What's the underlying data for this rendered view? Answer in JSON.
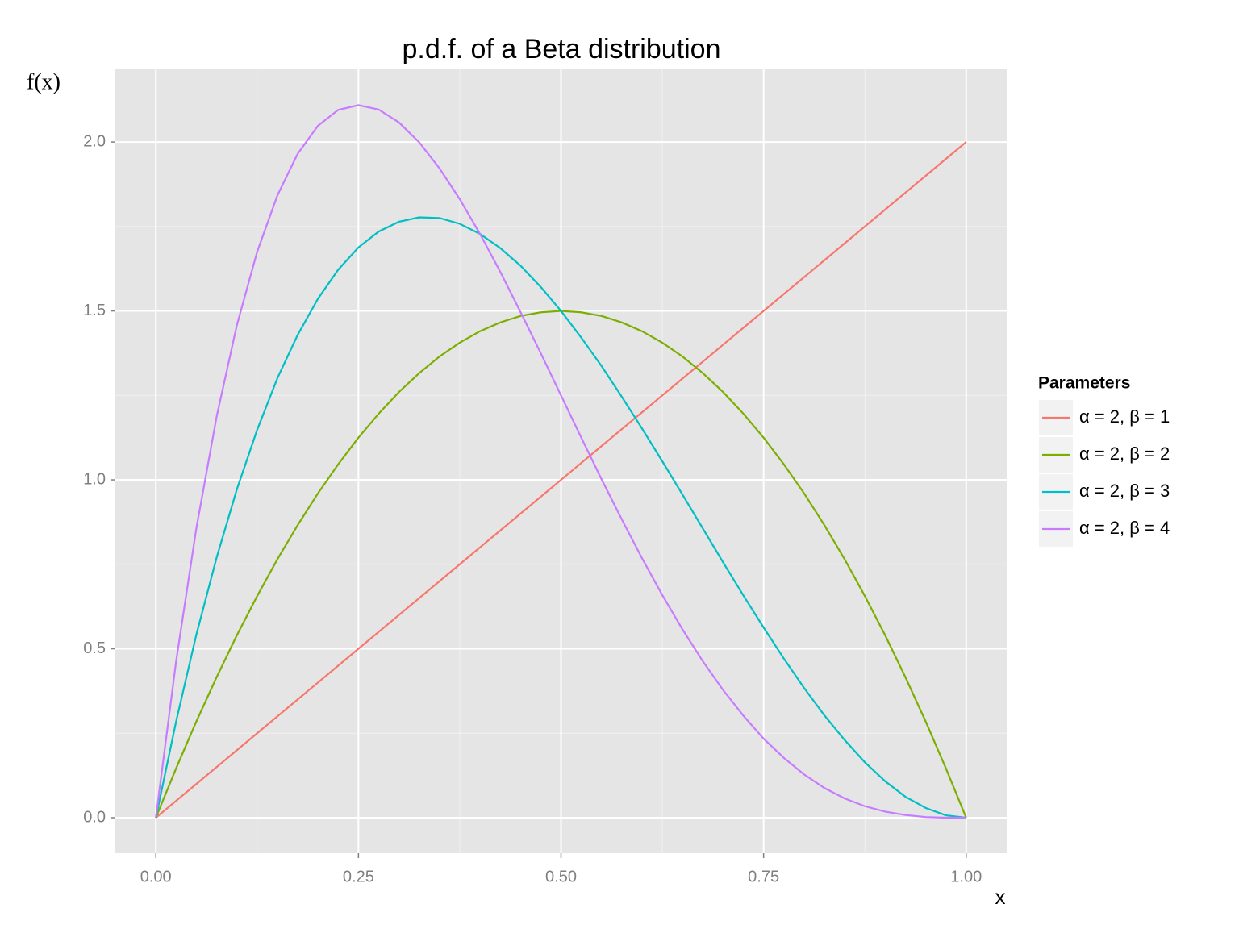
{
  "chart_data": {
    "type": "line",
    "title": "p.d.f. of a Beta distribution",
    "x_label": "x",
    "y_label": "f(x)",
    "legend_title": "Parameters",
    "legend_position": "right",
    "grid": true,
    "x": [
      0,
      0.025,
      0.05,
      0.075,
      0.1,
      0.125,
      0.15,
      0.175,
      0.2,
      0.225,
      0.25,
      0.275,
      0.3,
      0.325,
      0.35,
      0.375,
      0.4,
      0.425,
      0.45,
      0.475,
      0.5,
      0.525,
      0.55,
      0.575,
      0.6,
      0.625,
      0.65,
      0.675,
      0.7,
      0.725,
      0.75,
      0.775,
      0.8,
      0.825,
      0.85,
      0.875,
      0.9,
      0.925,
      0.95,
      0.975,
      1
    ],
    "series": [
      {
        "name": "α = 2, β = 1",
        "color": "#F8766D",
        "values": [
          0,
          0.05,
          0.1,
          0.15,
          0.2,
          0.25,
          0.3,
          0.35,
          0.4,
          0.45,
          0.5,
          0.55,
          0.6,
          0.65,
          0.7,
          0.75,
          0.8,
          0.85,
          0.9,
          0.95,
          1,
          1.05,
          1.1,
          1.15,
          1.2,
          1.25,
          1.3,
          1.35,
          1.4,
          1.45,
          1.5,
          1.55,
          1.6,
          1.65,
          1.7,
          1.75,
          1.8,
          1.85,
          1.9,
          1.95,
          2
        ]
      },
      {
        "name": "α = 2, β = 2",
        "color": "#7CAE00",
        "values": [
          0,
          0.146,
          0.285,
          0.416,
          0.54,
          0.656,
          0.765,
          0.866,
          0.96,
          1.046,
          1.125,
          1.196,
          1.26,
          1.316,
          1.365,
          1.406,
          1.44,
          1.466,
          1.485,
          1.496,
          1.5,
          1.496,
          1.485,
          1.466,
          1.44,
          1.406,
          1.365,
          1.316,
          1.26,
          1.196,
          1.125,
          1.046,
          0.96,
          0.866,
          0.765,
          0.656,
          0.54,
          0.416,
          0.285,
          0.146,
          0
        ]
      },
      {
        "name": "α = 2, β = 3",
        "color": "#00BFC4",
        "values": [
          0,
          0.285,
          0.542,
          0.77,
          0.972,
          1.148,
          1.301,
          1.429,
          1.536,
          1.622,
          1.688,
          1.735,
          1.764,
          1.777,
          1.775,
          1.758,
          1.728,
          1.686,
          1.634,
          1.571,
          1.5,
          1.421,
          1.337,
          1.246,
          1.152,
          1.055,
          0.956,
          0.856,
          0.756,
          0.658,
          0.563,
          0.471,
          0.384,
          0.303,
          0.23,
          0.164,
          0.108,
          0.062,
          0.029,
          0.007,
          0
        ]
      },
      {
        "name": "α = 2, β = 4",
        "color": "#C77CFF",
        "values": [
          0,
          0.463,
          0.857,
          1.187,
          1.458,
          1.675,
          1.842,
          1.965,
          2.048,
          2.095,
          2.109,
          2.096,
          2.058,
          1.999,
          1.922,
          1.831,
          1.728,
          1.616,
          1.497,
          1.375,
          1.25,
          1.125,
          1.002,
          0.883,
          0.768,
          0.659,
          0.557,
          0.463,
          0.378,
          0.302,
          0.234,
          0.177,
          0.128,
          0.088,
          0.057,
          0.034,
          0.018,
          0.008,
          0.002,
          0,
          0
        ]
      }
    ],
    "xlim": [
      -0.05,
      1.05
    ],
    "ylim": [
      -0.105,
      2.215
    ],
    "xticks": [
      {
        "value": 0,
        "label": "0.00"
      },
      {
        "value": 0.25,
        "label": "0.25"
      },
      {
        "value": 0.5,
        "label": "0.50"
      },
      {
        "value": 0.75,
        "label": "0.75"
      },
      {
        "value": 1,
        "label": "1.00"
      }
    ],
    "yticks": [
      {
        "value": 0,
        "label": "0.0"
      },
      0.5,
      {
        "value": 1,
        "label": "1.0"
      },
      1.5,
      {
        "value": 2,
        "label": "2.0"
      }
    ]
  }
}
